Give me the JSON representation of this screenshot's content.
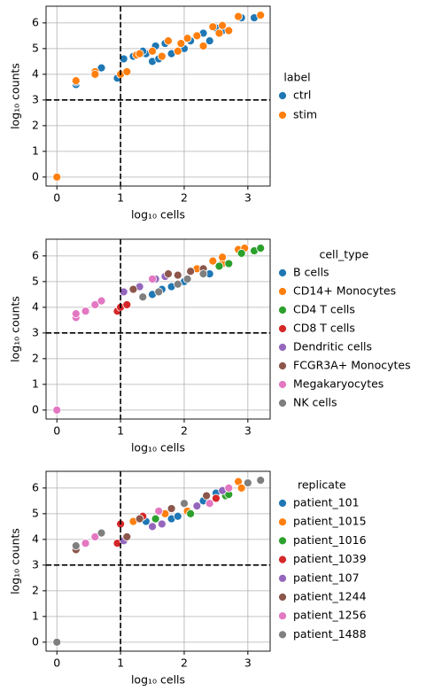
{
  "chart_data": [
    {
      "type": "scatter",
      "xlabel": "log₁₀ cells",
      "ylabel": "log₁₀ counts",
      "legend_title": "label",
      "legend": "right",
      "grid": true,
      "xlim": [
        -0.17,
        3.35
      ],
      "ylim": [
        -0.35,
        6.65
      ],
      "xticks": [
        0,
        1,
        2,
        3
      ],
      "yticks": [
        0,
        1,
        2,
        3,
        4,
        5,
        6
      ],
      "vlines": [
        1
      ],
      "hlines": [
        3
      ],
      "series": [
        {
          "name": "ctrl",
          "color": "#1f77b4",
          "x": [
            0.3,
            0.3,
            0.7,
            0.95,
            1.05,
            1.2,
            1.4,
            1.5,
            1.55,
            1.6,
            1.7,
            1.8,
            2.0,
            2.1,
            2.3,
            2.4,
            2.5,
            2.6,
            2.9,
            3.1,
            1.35,
            2.2
          ],
          "y": [
            3.6,
            3.7,
            4.25,
            3.85,
            4.6,
            4.7,
            4.8,
            4.5,
            5.1,
            4.6,
            5.2,
            4.8,
            5.0,
            5.3,
            5.6,
            5.3,
            5.8,
            5.7,
            6.2,
            6.2,
            4.9,
            5.5
          ]
        },
        {
          "name": "stim",
          "color": "#ff7f0e",
          "x": [
            0,
            0.3,
            0.6,
            0.6,
            1.0,
            1.1,
            1.25,
            1.3,
            1.5,
            1.65,
            1.75,
            1.9,
            1.95,
            2.05,
            2.2,
            2.3,
            2.45,
            2.55,
            2.7,
            2.85,
            3.2,
            2.6
          ],
          "y": [
            0,
            3.75,
            4.1,
            4.0,
            4.0,
            4.1,
            4.75,
            4.8,
            4.9,
            4.7,
            5.3,
            4.9,
            5.2,
            5.4,
            5.5,
            5.1,
            5.85,
            5.6,
            5.7,
            6.25,
            6.3,
            5.9
          ]
        }
      ]
    },
    {
      "type": "scatter",
      "xlabel": "log₁₀ cells",
      "ylabel": "log₁₀ counts",
      "legend_title": "cell_type",
      "legend": "right",
      "grid": true,
      "xlim": [
        -0.17,
        3.35
      ],
      "ylim": [
        -0.35,
        6.65
      ],
      "xticks": [
        0,
        1,
        2,
        3
      ],
      "yticks": [
        0,
        1,
        2,
        3,
        4,
        5,
        6
      ],
      "vlines": [
        1
      ],
      "hlines": [
        3
      ],
      "series": [
        {
          "name": "B cells",
          "color": "#1f77b4",
          "x": [
            1.5,
            1.65,
            1.8,
            2.0,
            2.4
          ],
          "y": [
            4.5,
            4.7,
            4.8,
            5.0,
            5.3
          ]
        },
        {
          "name": "CD14+ Monocytes",
          "color": "#ff7f0e",
          "x": [
            2.2,
            2.45,
            2.6,
            2.85,
            2.6,
            2.95
          ],
          "y": [
            5.5,
            5.8,
            5.7,
            6.25,
            5.95,
            6.3
          ]
        },
        {
          "name": "CD4 T cells",
          "color": "#2ca02c",
          "x": [
            2.7,
            2.9,
            3.1,
            3.2,
            2.55
          ],
          "y": [
            5.7,
            6.1,
            6.2,
            6.3,
            5.6
          ]
        },
        {
          "name": "CD8 T cells",
          "color": "#d62728",
          "x": [
            0.95,
            1.0,
            1.1
          ],
          "y": [
            3.85,
            4.0,
            4.1
          ]
        },
        {
          "name": "Dendritic cells",
          "color": "#9467bd",
          "x": [
            1.05,
            1.3,
            1.55,
            1.7
          ],
          "y": [
            4.6,
            4.8,
            5.1,
            5.2
          ]
        },
        {
          "name": "FCGR3A+ Monocytes",
          "color": "#8c564b",
          "x": [
            1.2,
            1.75,
            1.9,
            2.1,
            2.3
          ],
          "y": [
            4.7,
            5.3,
            5.25,
            5.4,
            5.5
          ]
        },
        {
          "name": "Megakaryocytes",
          "color": "#e377c2",
          "x": [
            0,
            0.3,
            0.3,
            0.45,
            0.6,
            0.7,
            1.5
          ],
          "y": [
            0,
            3.6,
            3.75,
            3.85,
            4.1,
            4.25,
            5.1
          ]
        },
        {
          "name": "NK cells",
          "color": "#7f7f7f",
          "x": [
            1.35,
            1.6,
            1.9,
            2.05,
            2.3
          ],
          "y": [
            4.4,
            4.6,
            4.9,
            5.1,
            5.3
          ]
        }
      ]
    },
    {
      "type": "scatter",
      "xlabel": "log₁₀ cells",
      "ylabel": "log₁₀ counts",
      "legend_title": "replicate",
      "legend": "right",
      "grid": true,
      "xlim": [
        -0.17,
        3.35
      ],
      "ylim": [
        -0.35,
        6.65
      ],
      "xticks": [
        0,
        1,
        2,
        3
      ],
      "yticks": [
        0,
        1,
        2,
        3,
        4,
        5,
        6
      ],
      "vlines": [
        1
      ],
      "hlines": [
        3
      ],
      "series": [
        {
          "name": "patient_101",
          "color": "#1f77b4",
          "x": [
            1.4,
            1.8,
            1.9,
            2.3,
            2.5
          ],
          "y": [
            4.7,
            4.8,
            4.9,
            5.5,
            5.8
          ]
        },
        {
          "name": "patient_1015",
          "color": "#ff7f0e",
          "x": [
            1.2,
            1.7,
            2.05,
            2.85,
            2.9
          ],
          "y": [
            4.7,
            5.0,
            5.1,
            6.25,
            6.0
          ]
        },
        {
          "name": "patient_1016",
          "color": "#2ca02c",
          "x": [
            1.55,
            2.1,
            2.65,
            2.7
          ],
          "y": [
            4.8,
            5.0,
            5.7,
            5.75
          ]
        },
        {
          "name": "patient_1039",
          "color": "#d62728",
          "x": [
            0.95,
            1.0,
            1.35,
            2.5
          ],
          "y": [
            3.85,
            4.6,
            4.9,
            5.6
          ]
        },
        {
          "name": "patient_107",
          "color": "#9467bd",
          "x": [
            1.05,
            1.5,
            1.65,
            2.2,
            2.6
          ],
          "y": [
            3.95,
            4.5,
            4.6,
            5.3,
            5.9
          ]
        },
        {
          "name": "patient_1244",
          "color": "#8c564b",
          "x": [
            0.3,
            1.1,
            1.3,
            1.8,
            2.35
          ],
          "y": [
            3.6,
            4.1,
            4.8,
            5.2,
            5.7
          ]
        },
        {
          "name": "patient_1256",
          "color": "#e377c2",
          "x": [
            0.45,
            0.6,
            1.6,
            2.4,
            2.7
          ],
          "y": [
            3.85,
            4.1,
            5.1,
            5.4,
            6.0
          ]
        },
        {
          "name": "patient_1488",
          "color": "#7f7f7f",
          "x": [
            0,
            0.3,
            0.7,
            2.0,
            3.0,
            3.2
          ],
          "y": [
            0,
            3.75,
            4.25,
            5.4,
            6.2,
            6.3
          ]
        }
      ]
    }
  ]
}
